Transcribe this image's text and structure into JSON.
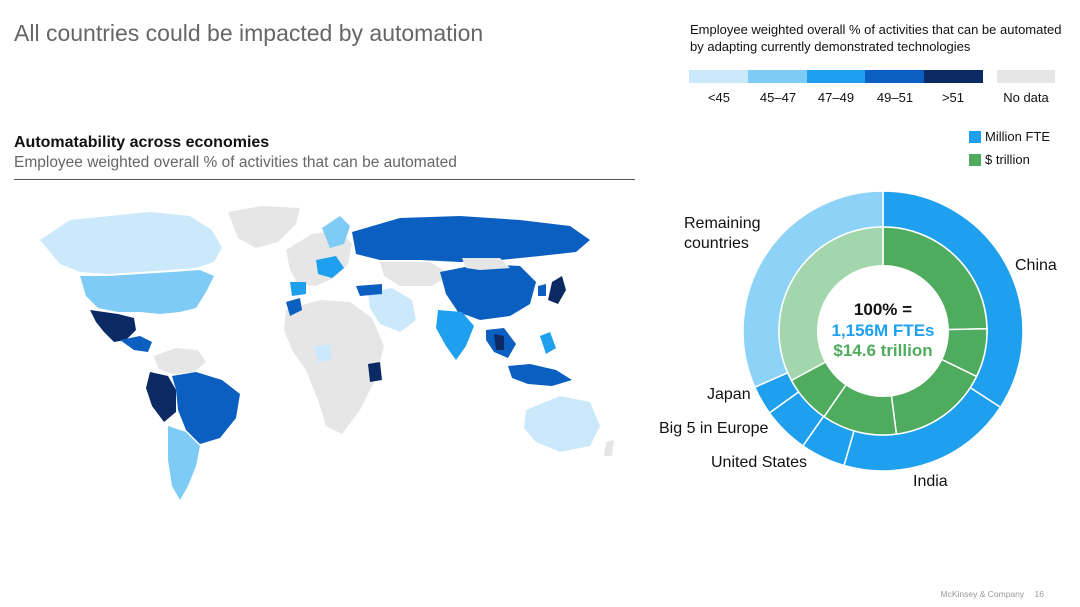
{
  "header": {
    "title": "All countries could be impacted by automation"
  },
  "map_section": {
    "title": "Automatability across economies",
    "subtitle": "Employee weighted overall % of activities that can be automated"
  },
  "scale": {
    "title": "Employee weighted overall % of activities that can be automated  by adapting currently demonstrated technologies",
    "bins": [
      {
        "label": "<45",
        "color": "#cce9fb"
      },
      {
        "label": "45–47",
        "color": "#7ecbf6"
      },
      {
        "label": "47–49",
        "color": "#1ea0ee"
      },
      {
        "label": "49–51",
        "color": "#0b5fc0"
      },
      {
        "label": ">51",
        "color": "#0b2a63"
      }
    ],
    "no_data": {
      "label": "No data",
      "color": "#e6e6e6"
    }
  },
  "legend": {
    "items": [
      {
        "label": "Million FTE",
        "color": "#1ea0ee"
      },
      {
        "label": "$ trillion",
        "color": "#4fab5d"
      }
    ]
  },
  "donut_center": {
    "line1": "100% =",
    "line2": "1,156M FTEs",
    "line3": "$14.6 trillion",
    "line2_color": "#1ea0ee",
    "line3_color": "#4fab5d"
  },
  "chart_data": {
    "type": "pie",
    "subtype": "nested-donut",
    "categories": [
      "China",
      "India",
      "United States",
      "Big 5 in Europe",
      "Japan",
      "Remaining countries"
    ],
    "series": [
      {
        "name": "Million FTE",
        "values": [
          395,
          235,
          60,
          62,
          39,
          365
        ]
      },
      {
        "name": "$ trillion",
        "values": [
          3.6,
          1.1,
          2.3,
          1.7,
          1.1,
          4.8
        ]
      }
    ],
    "totals": {
      "Million FTE": 1156,
      "$ trillion": 14.6
    },
    "labels": [
      "China",
      "India",
      "United States",
      "Big 5 in Europe",
      "Japan",
      "Remaining countries"
    ]
  },
  "footer": {
    "company": "McKinsey & Company",
    "page": "16"
  }
}
